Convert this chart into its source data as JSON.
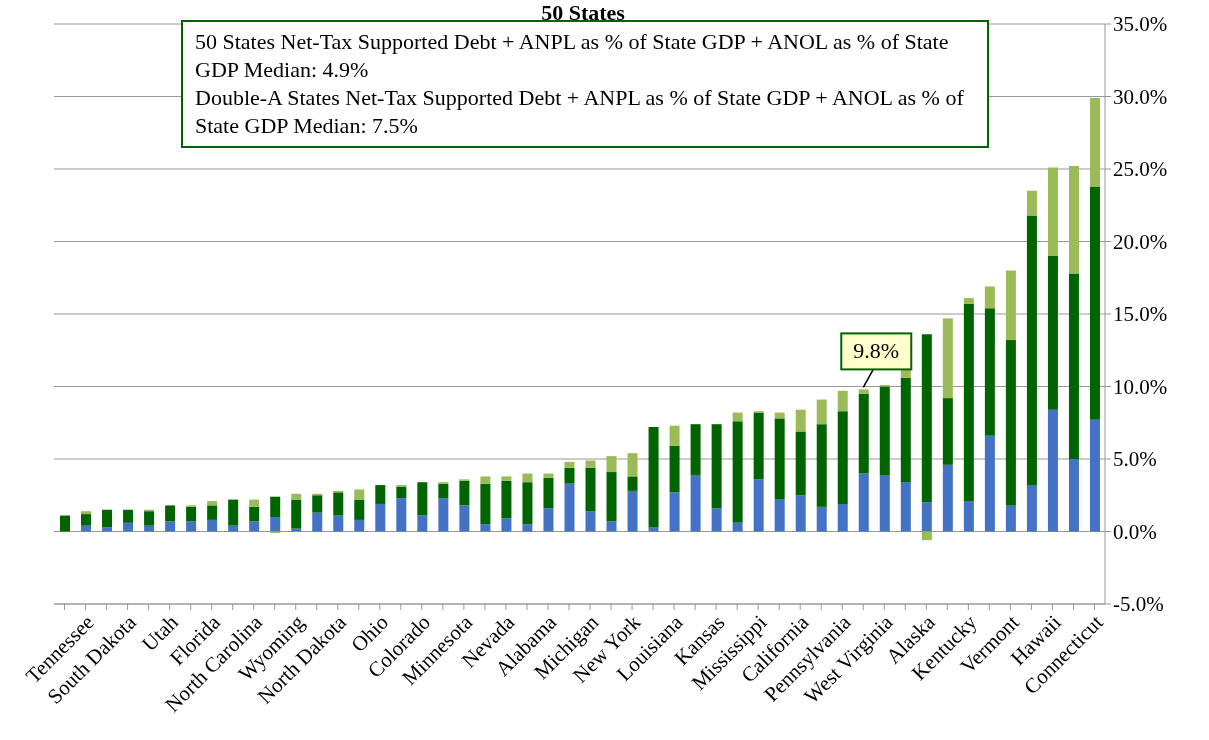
{
  "chart_data": {
    "type": "bar",
    "title": "50 States",
    "stacked": true,
    "categories": [
      null,
      "Tennessee",
      null,
      "South Dakota",
      null,
      "Utah",
      null,
      "Florida",
      null,
      "North Carolina",
      null,
      "Wyoming",
      null,
      "North Dakota",
      null,
      "Ohio",
      null,
      "Colorado",
      null,
      "Minnesota",
      null,
      "Nevada",
      null,
      "Alabama",
      null,
      "Michigan",
      null,
      "New York",
      null,
      "Louisiana",
      null,
      "Kansas",
      null,
      "Mississippi",
      null,
      "California",
      null,
      "Pennsylvania",
      null,
      "West Virginia",
      null,
      "Alaska",
      null,
      "Kentucky",
      null,
      "Vermont",
      null,
      "Hawaii",
      null,
      "Connecticut"
    ],
    "series": [
      {
        "color": "#4472c4",
        "values": [
          0,
          0.4,
          0.3,
          0.6,
          0.4,
          0.7,
          0.7,
          0.8,
          0.4,
          0.7,
          1.0,
          0.2,
          1.3,
          1.1,
          0.8,
          1.9,
          2.3,
          1.1,
          2.3,
          1.8,
          0.5,
          0.9,
          0.5,
          1.6,
          3.3,
          1.4,
          0.7,
          2.8,
          0.3,
          2.7,
          3.9,
          1.6,
          0.6,
          3.6,
          2.2,
          2.5,
          1.7,
          1.9,
          4.0,
          3.9,
          3.4,
          2.0,
          4.6,
          2.1,
          6.6,
          1.8,
          3.2,
          8.4,
          5.0,
          7.7
        ]
      },
      {
        "color": "#006400",
        "values": [
          1.1,
          0.8,
          1.2,
          0.9,
          1.0,
          1.1,
          1.0,
          1.0,
          1.8,
          1.0,
          1.4,
          2.0,
          1.2,
          1.6,
          1.4,
          1.3,
          0.8,
          2.3,
          1.0,
          1.7,
          2.8,
          2.6,
          2.9,
          2.1,
          1.1,
          3.0,
          3.4,
          1.0,
          6.9,
          3.2,
          3.5,
          5.8,
          7.0,
          4.6,
          5.6,
          4.4,
          5.7,
          6.4,
          5.5,
          6.1,
          7.2,
          11.6,
          4.6,
          13.6,
          8.8,
          11.4,
          18.6,
          10.6,
          12.8,
          16.1
        ]
      },
      {
        "color": "#9bbb59",
        "values": [
          0,
          0.2,
          0,
          0,
          0.1,
          0,
          0.1,
          0.3,
          0,
          0.5,
          -0.1,
          0.4,
          0.1,
          0.1,
          0.7,
          0,
          0.1,
          0,
          0.1,
          0.1,
          0.5,
          0.3,
          0.6,
          0.3,
          0.4,
          0.5,
          1.1,
          1.6,
          0,
          1.4,
          0,
          0,
          0.6,
          0.1,
          0.4,
          1.5,
          1.7,
          1.4,
          0.3,
          0.1,
          0.6,
          -0.6,
          5.5,
          0.4,
          1.5,
          4.8,
          1.7,
          6.1,
          7.4,
          6.1
        ]
      }
    ],
    "ylim": [
      -5,
      35
    ],
    "yticks": [
      {
        "value": -5,
        "label": "-5.0%"
      },
      {
        "value": 0,
        "label": "0.0%"
      },
      {
        "value": 5,
        "label": "5.0%"
      },
      {
        "value": 10,
        "label": "10.0%"
      },
      {
        "value": 15,
        "label": "15.0%"
      },
      {
        "value": 20,
        "label": "20.0%"
      },
      {
        "value": 25,
        "label": "25.0%"
      },
      {
        "value": 30,
        "label": "30.0%"
      },
      {
        "value": 35,
        "label": "35.0%"
      }
    ],
    "grid": "y",
    "annotations": [
      "50 States Net-Tax Supported Debt + ANPL as % of State GDP + ANOL as % of State GDP Median: 4.9%\nDouble-A States Net-Tax Supported Debt + ANPL as % of State GDP + ANOL as % of State GDP Median: 7.5%",
      {
        "text": "9.8%",
        "y": 9.8
      }
    ]
  }
}
